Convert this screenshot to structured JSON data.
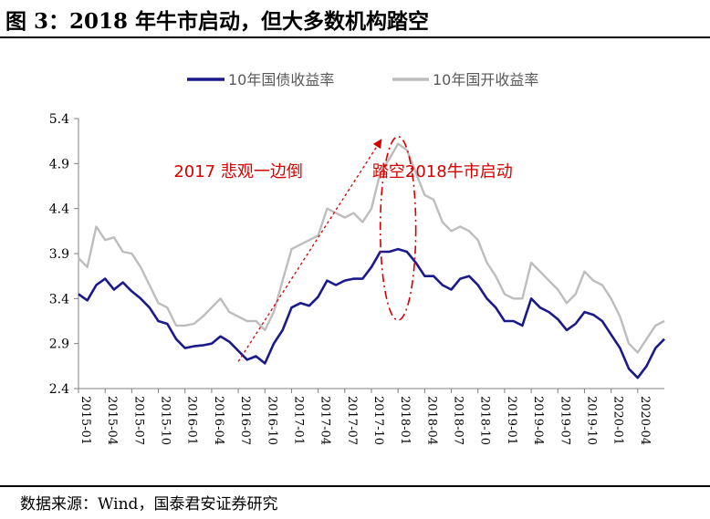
{
  "figure": {
    "title": "图 3：2018 年牛市启动，但大多数机构踏空",
    "source": "数据来源：Wind，国泰君安证券研究"
  },
  "colors": {
    "series_gov": "#1a1a8c",
    "series_dev": "#bdbdbd",
    "annotation": "#d40000",
    "axis": "#7f7f7f"
  },
  "chart_data": {
    "type": "line",
    "title": "",
    "xlabel": "",
    "ylabel": "",
    "ylim": [
      2.4,
      5.4
    ],
    "yticks": [
      2.4,
      2.9,
      3.4,
      3.9,
      4.4,
      4.9,
      5.4
    ],
    "ytick_labels": [
      "2.4",
      "2.9",
      "3.4",
      "3.9",
      "4.4",
      "4.9",
      "5.4"
    ],
    "xlim": [
      "2015-01",
      "2020-07"
    ],
    "xticks": [
      "2015-01",
      "2015-04",
      "2015-07",
      "2015-10",
      "2016-01",
      "2016-04",
      "2016-07",
      "2016-10",
      "2017-01",
      "2017-04",
      "2017-07",
      "2017-10",
      "2018-01",
      "2018-04",
      "2018-07",
      "2018-10",
      "2019-01",
      "2019-04",
      "2019-07",
      "2019-10",
      "2020-01",
      "2020-04"
    ],
    "legend": "top-center",
    "grid": false,
    "series": [
      {
        "name": "10年国债收益率",
        "points": [
          [
            "2015-01",
            3.45
          ],
          [
            "2015-02",
            3.38
          ],
          [
            "2015-03",
            3.55
          ],
          [
            "2015-04",
            3.62
          ],
          [
            "2015-05",
            3.5
          ],
          [
            "2015-06",
            3.58
          ],
          [
            "2015-07",
            3.48
          ],
          [
            "2015-08",
            3.4
          ],
          [
            "2015-09",
            3.3
          ],
          [
            "2015-10",
            3.15
          ],
          [
            "2015-11",
            3.12
          ],
          [
            "2015-12",
            2.95
          ],
          [
            "2016-01",
            2.85
          ],
          [
            "2016-02",
            2.87
          ],
          [
            "2016-03",
            2.88
          ],
          [
            "2016-04",
            2.9
          ],
          [
            "2016-05",
            2.98
          ],
          [
            "2016-06",
            2.92
          ],
          [
            "2016-07",
            2.82
          ],
          [
            "2016-08",
            2.72
          ],
          [
            "2016-09",
            2.76
          ],
          [
            "2016-10",
            2.68
          ],
          [
            "2016-11",
            2.9
          ],
          [
            "2016-12",
            3.05
          ],
          [
            "2017-01",
            3.3
          ],
          [
            "2017-02",
            3.35
          ],
          [
            "2017-03",
            3.32
          ],
          [
            "2017-04",
            3.42
          ],
          [
            "2017-05",
            3.6
          ],
          [
            "2017-06",
            3.55
          ],
          [
            "2017-07",
            3.6
          ],
          [
            "2017-08",
            3.62
          ],
          [
            "2017-09",
            3.62
          ],
          [
            "2017-10",
            3.75
          ],
          [
            "2017-11",
            3.92
          ],
          [
            "2017-12",
            3.92
          ],
          [
            "2018-01",
            3.95
          ],
          [
            "2018-02",
            3.92
          ],
          [
            "2018-03",
            3.8
          ],
          [
            "2018-04",
            3.65
          ],
          [
            "2018-05",
            3.65
          ],
          [
            "2018-06",
            3.55
          ],
          [
            "2018-07",
            3.5
          ],
          [
            "2018-08",
            3.62
          ],
          [
            "2018-09",
            3.65
          ],
          [
            "2018-10",
            3.55
          ],
          [
            "2018-11",
            3.4
          ],
          [
            "2018-12",
            3.3
          ],
          [
            "2019-01",
            3.15
          ],
          [
            "2019-02",
            3.15
          ],
          [
            "2019-03",
            3.1
          ],
          [
            "2019-04",
            3.4
          ],
          [
            "2019-05",
            3.3
          ],
          [
            "2019-06",
            3.25
          ],
          [
            "2019-07",
            3.17
          ],
          [
            "2019-08",
            3.05
          ],
          [
            "2019-09",
            3.12
          ],
          [
            "2019-10",
            3.25
          ],
          [
            "2019-11",
            3.22
          ],
          [
            "2019-12",
            3.15
          ],
          [
            "2020-01",
            3.0
          ],
          [
            "2020-02",
            2.85
          ],
          [
            "2020-03",
            2.62
          ],
          [
            "2020-04",
            2.52
          ],
          [
            "2020-05",
            2.65
          ],
          [
            "2020-06",
            2.85
          ],
          [
            "2020-07",
            2.95
          ]
        ]
      },
      {
        "name": "10年国开收益率",
        "points": [
          [
            "2015-01",
            3.85
          ],
          [
            "2015-02",
            3.75
          ],
          [
            "2015-03",
            4.2
          ],
          [
            "2015-04",
            4.05
          ],
          [
            "2015-05",
            4.08
          ],
          [
            "2015-06",
            3.92
          ],
          [
            "2015-07",
            3.9
          ],
          [
            "2015-08",
            3.75
          ],
          [
            "2015-09",
            3.55
          ],
          [
            "2015-10",
            3.35
          ],
          [
            "2015-11",
            3.3
          ],
          [
            "2015-12",
            3.1
          ],
          [
            "2016-01",
            3.1
          ],
          [
            "2016-02",
            3.12
          ],
          [
            "2016-03",
            3.2
          ],
          [
            "2016-04",
            3.3
          ],
          [
            "2016-05",
            3.4
          ],
          [
            "2016-06",
            3.25
          ],
          [
            "2016-07",
            3.2
          ],
          [
            "2016-08",
            3.15
          ],
          [
            "2016-09",
            3.15
          ],
          [
            "2016-10",
            3.05
          ],
          [
            "2016-11",
            3.25
          ],
          [
            "2016-12",
            3.6
          ],
          [
            "2017-01",
            3.95
          ],
          [
            "2017-02",
            4.0
          ],
          [
            "2017-03",
            4.05
          ],
          [
            "2017-04",
            4.1
          ],
          [
            "2017-05",
            4.4
          ],
          [
            "2017-06",
            4.35
          ],
          [
            "2017-07",
            4.3
          ],
          [
            "2017-08",
            4.35
          ],
          [
            "2017-09",
            4.25
          ],
          [
            "2017-10",
            4.4
          ],
          [
            "2017-11",
            4.8
          ],
          [
            "2017-12",
            4.95
          ],
          [
            "2018-01",
            5.12
          ],
          [
            "2018-02",
            5.05
          ],
          [
            "2018-03",
            4.8
          ],
          [
            "2018-04",
            4.55
          ],
          [
            "2018-05",
            4.5
          ],
          [
            "2018-06",
            4.25
          ],
          [
            "2018-07",
            4.15
          ],
          [
            "2018-08",
            4.2
          ],
          [
            "2018-09",
            4.15
          ],
          [
            "2018-10",
            4.05
          ],
          [
            "2018-11",
            3.8
          ],
          [
            "2018-12",
            3.65
          ],
          [
            "2019-01",
            3.45
          ],
          [
            "2019-02",
            3.4
          ],
          [
            "2019-03",
            3.4
          ],
          [
            "2019-04",
            3.8
          ],
          [
            "2019-05",
            3.7
          ],
          [
            "2019-06",
            3.6
          ],
          [
            "2019-07",
            3.5
          ],
          [
            "2019-08",
            3.35
          ],
          [
            "2019-09",
            3.45
          ],
          [
            "2019-10",
            3.7
          ],
          [
            "2019-11",
            3.6
          ],
          [
            "2019-12",
            3.55
          ],
          [
            "2020-01",
            3.4
          ],
          [
            "2020-02",
            3.2
          ],
          [
            "2020-03",
            2.9
          ],
          [
            "2020-04",
            2.8
          ],
          [
            "2020-05",
            2.95
          ],
          [
            "2020-06",
            3.1
          ],
          [
            "2020-07",
            3.15
          ]
        ]
      }
    ],
    "annotations": [
      {
        "text": "2017  悲观一边倒",
        "at": [
          "2016-07",
          4.75
        ]
      },
      {
        "text": "踏空2018牛市启动",
        "at": [
          "2018-06",
          4.75
        ]
      }
    ],
    "arrow": {
      "from": [
        "2016-07",
        2.7
      ],
      "to": [
        "2017-11",
        5.15
      ]
    },
    "ellipse": {
      "center": [
        "2018-01",
        4.18
      ],
      "rx_months": 2.0,
      "ry_value": 1.02
    }
  }
}
